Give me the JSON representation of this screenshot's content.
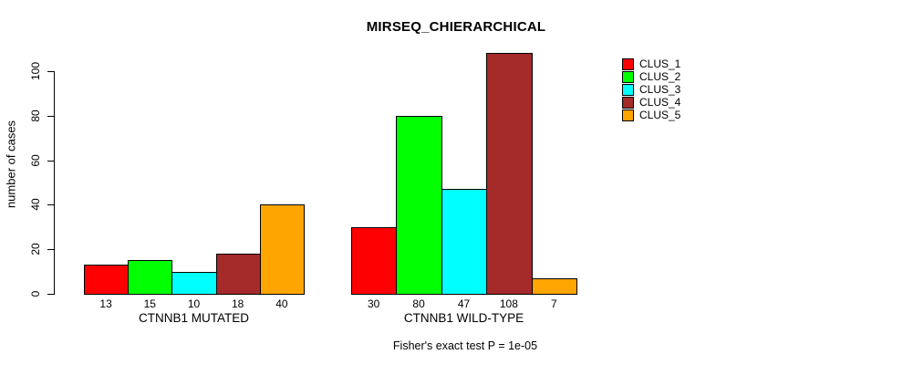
{
  "chart_data": {
    "type": "bar",
    "title": "MIRSEQ_CHIERARCHICAL",
    "ylabel": "number of cases",
    "xlabel": "",
    "categories": [
      "CTNNB1 MUTATED",
      "CTNNB1 WILD-TYPE"
    ],
    "series": [
      {
        "name": "CLUS_1",
        "color": "#ff0000",
        "values": [
          13,
          30
        ]
      },
      {
        "name": "CLUS_2",
        "color": "#00ff00",
        "values": [
          15,
          80
        ]
      },
      {
        "name": "CLUS_3",
        "color": "#00ffff",
        "values": [
          10,
          47
        ]
      },
      {
        "name": "CLUS_4",
        "color": "#a52a2a",
        "values": [
          18,
          108
        ]
      },
      {
        "name": "CLUS_5",
        "color": "#ffa500",
        "values": [
          40,
          7
        ]
      }
    ],
    "yticks": [
      0,
      20,
      40,
      60,
      80,
      100
    ],
    "ylim": [
      0,
      100
    ],
    "grid": false,
    "bar_value_labels": true,
    "legend_position": "right",
    "footnote": "Fisher's exact test P = 1e-05"
  }
}
